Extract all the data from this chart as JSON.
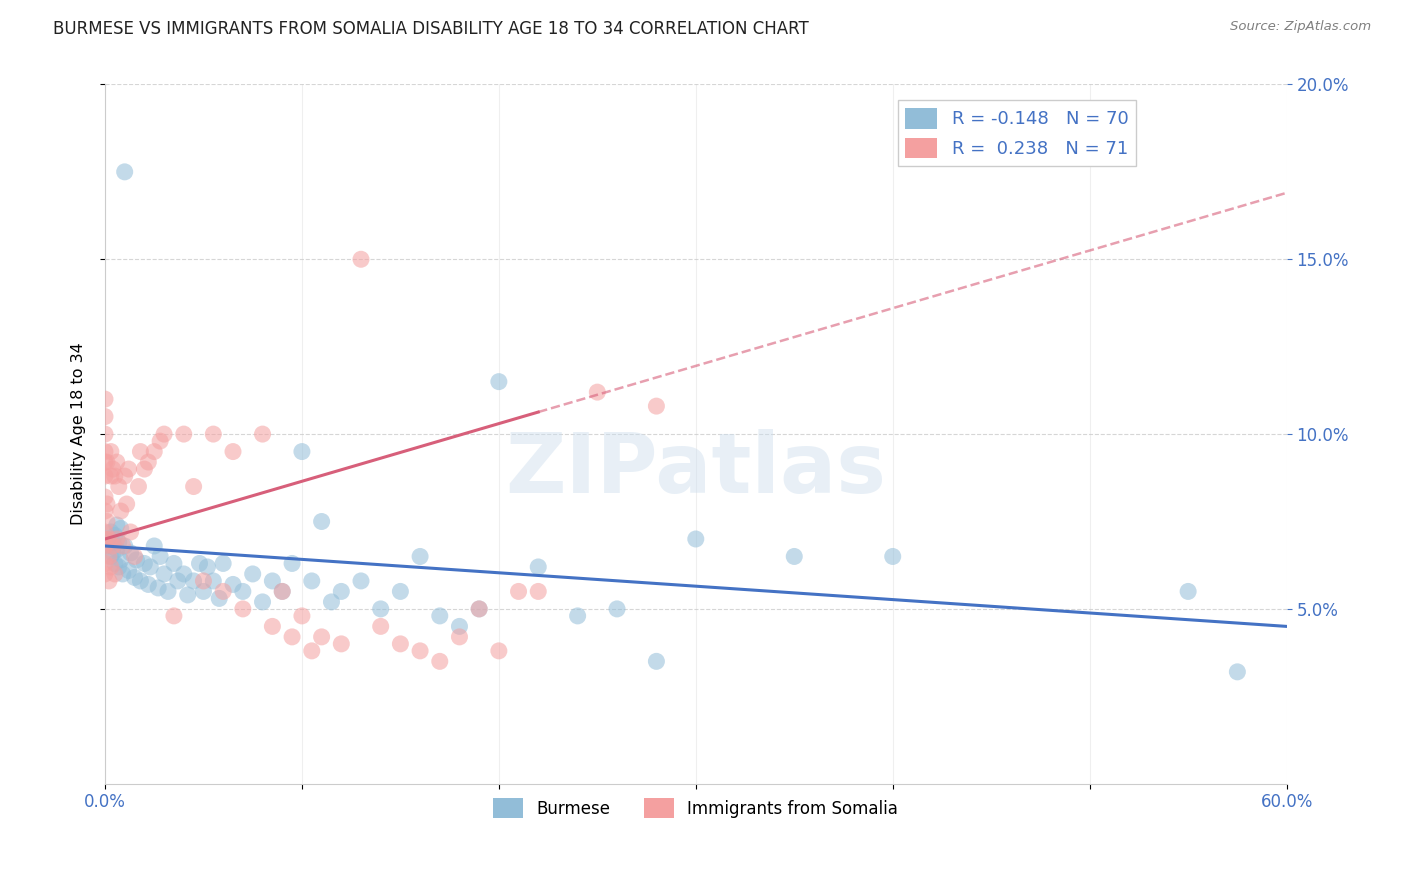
{
  "title": "BURMESE VS IMMIGRANTS FROM SOMALIA DISABILITY AGE 18 TO 34 CORRELATION CHART",
  "source": "Source: ZipAtlas.com",
  "xlabel_burmese": "Burmese",
  "xlabel_somalia": "Immigrants from Somalia",
  "ylabel": "Disability Age 18 to 34",
  "xlim": [
    0.0,
    0.6
  ],
  "ylim": [
    0.0,
    0.2
  ],
  "xticks": [
    0.0,
    0.1,
    0.2,
    0.3,
    0.4,
    0.5,
    0.6
  ],
  "yticks": [
    0.05,
    0.1,
    0.15,
    0.2
  ],
  "color_burmese": "#92BDD8",
  "color_somalia": "#F4A0A0",
  "color_line_burmese": "#4472C4",
  "color_line_somalia": "#D75F7A",
  "watermark": "ZIPatlas",
  "R_burmese": -0.148,
  "N_burmese": 70,
  "R_somalia": 0.238,
  "N_somalia": 71,
  "burmese_x": [
    0.001,
    0.002,
    0.003,
    0.003,
    0.004,
    0.004,
    0.005,
    0.005,
    0.006,
    0.006,
    0.007,
    0.007,
    0.008,
    0.008,
    0.009,
    0.01,
    0.01,
    0.012,
    0.013,
    0.015,
    0.016,
    0.018,
    0.02,
    0.022,
    0.023,
    0.025,
    0.027,
    0.028,
    0.03,
    0.032,
    0.035,
    0.037,
    0.04,
    0.042,
    0.045,
    0.048,
    0.05,
    0.052,
    0.055,
    0.058,
    0.06,
    0.065,
    0.07,
    0.075,
    0.08,
    0.085,
    0.09,
    0.095,
    0.1,
    0.105,
    0.11,
    0.115,
    0.12,
    0.13,
    0.14,
    0.15,
    0.16,
    0.17,
    0.18,
    0.19,
    0.2,
    0.22,
    0.24,
    0.26,
    0.28,
    0.3,
    0.35,
    0.4,
    0.55,
    0.575
  ],
  "burmese_y": [
    0.07,
    0.068,
    0.065,
    0.072,
    0.066,
    0.069,
    0.071,
    0.063,
    0.067,
    0.074,
    0.062,
    0.069,
    0.064,
    0.073,
    0.06,
    0.068,
    0.175,
    0.061,
    0.066,
    0.059,
    0.064,
    0.058,
    0.063,
    0.057,
    0.062,
    0.068,
    0.056,
    0.065,
    0.06,
    0.055,
    0.063,
    0.058,
    0.06,
    0.054,
    0.058,
    0.063,
    0.055,
    0.062,
    0.058,
    0.053,
    0.063,
    0.057,
    0.055,
    0.06,
    0.052,
    0.058,
    0.055,
    0.063,
    0.095,
    0.058,
    0.075,
    0.052,
    0.055,
    0.058,
    0.05,
    0.055,
    0.065,
    0.048,
    0.045,
    0.05,
    0.115,
    0.062,
    0.048,
    0.05,
    0.035,
    0.07,
    0.065,
    0.065,
    0.055,
    0.032
  ],
  "somalia_x": [
    0.0,
    0.0,
    0.0,
    0.0,
    0.0,
    0.0,
    0.0,
    0.0,
    0.0,
    0.0,
    0.0,
    0.0,
    0.0,
    0.001,
    0.001,
    0.001,
    0.002,
    0.002,
    0.002,
    0.003,
    0.003,
    0.003,
    0.004,
    0.004,
    0.005,
    0.005,
    0.006,
    0.006,
    0.007,
    0.008,
    0.009,
    0.01,
    0.011,
    0.012,
    0.013,
    0.015,
    0.017,
    0.018,
    0.02,
    0.022,
    0.025,
    0.028,
    0.03,
    0.035,
    0.04,
    0.045,
    0.05,
    0.055,
    0.06,
    0.065,
    0.07,
    0.08,
    0.085,
    0.09,
    0.095,
    0.1,
    0.105,
    0.11,
    0.12,
    0.13,
    0.14,
    0.15,
    0.16,
    0.17,
    0.18,
    0.19,
    0.2,
    0.21,
    0.22,
    0.25,
    0.28
  ],
  "somalia_y": [
    0.072,
    0.078,
    0.082,
    0.088,
    0.092,
    0.095,
    0.1,
    0.105,
    0.11,
    0.068,
    0.063,
    0.06,
    0.07,
    0.075,
    0.08,
    0.092,
    0.065,
    0.07,
    0.058,
    0.088,
    0.095,
    0.062,
    0.09,
    0.068,
    0.088,
    0.06,
    0.092,
    0.07,
    0.085,
    0.078,
    0.068,
    0.088,
    0.08,
    0.09,
    0.072,
    0.065,
    0.085,
    0.095,
    0.09,
    0.092,
    0.095,
    0.098,
    0.1,
    0.048,
    0.1,
    0.085,
    0.058,
    0.1,
    0.055,
    0.095,
    0.05,
    0.1,
    0.045,
    0.055,
    0.042,
    0.048,
    0.038,
    0.042,
    0.04,
    0.15,
    0.045,
    0.04,
    0.038,
    0.035,
    0.042,
    0.05,
    0.038,
    0.055,
    0.055,
    0.112,
    0.108
  ]
}
